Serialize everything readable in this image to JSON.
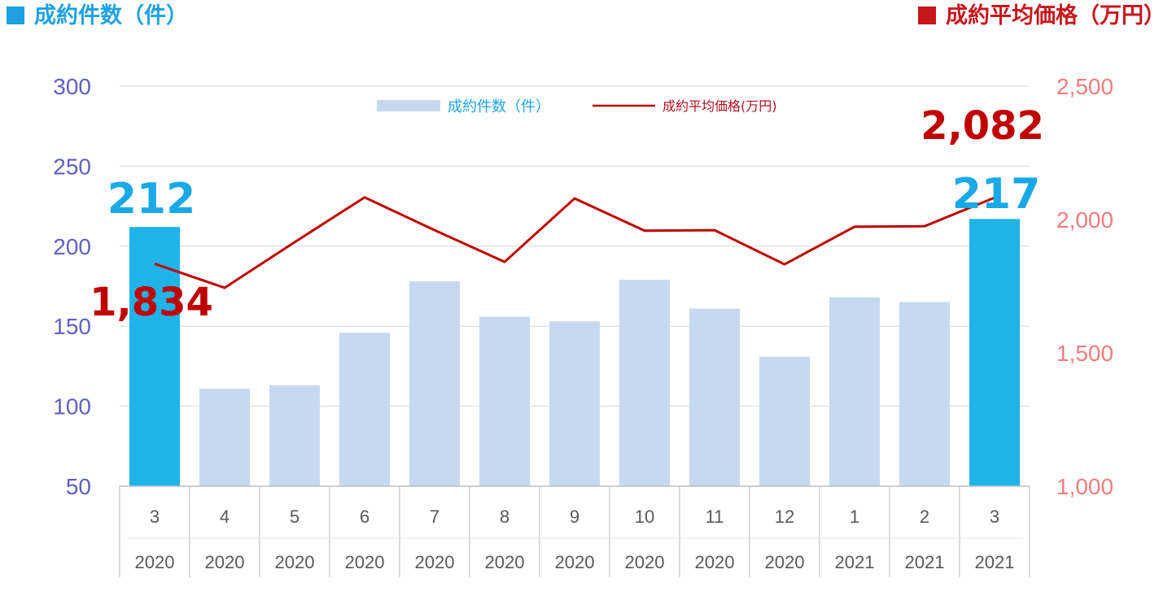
{
  "headers": {
    "left": "成約件数（件）",
    "right": "成約平均価格（万円）"
  },
  "chart_data": {
    "type": "bar",
    "categories": [
      "3",
      "4",
      "5",
      "6",
      "7",
      "8",
      "9",
      "10",
      "11",
      "12",
      "1",
      "2",
      "3"
    ],
    "years": [
      "2020",
      "2020",
      "2020",
      "2020",
      "2020",
      "2020",
      "2020",
      "2020",
      "2020",
      "2020",
      "2021",
      "2021",
      "2021"
    ],
    "series": [
      {
        "name": "成約件数（件）",
        "type": "bar",
        "axis": "left",
        "values": [
          212,
          111,
          113,
          146,
          178,
          156,
          153,
          179,
          161,
          131,
          168,
          165,
          217
        ]
      },
      {
        "name": "成約平均価格(万円)",
        "type": "line",
        "axis": "right",
        "values": [
          1834,
          1744,
          1915,
          2083,
          1960,
          1841,
          2079,
          1958,
          1960,
          1832,
          1973,
          1975,
          2082
        ]
      }
    ],
    "ylim_left": [
      50,
      300
    ],
    "yticks_left": [
      "50",
      "100",
      "150",
      "200",
      "250",
      "300"
    ],
    "ylim_right": [
      1000,
      2500
    ],
    "yticks_right": [
      "1,000",
      "1,500",
      "2,000",
      "2,500"
    ],
    "highlight_indices": [
      0,
      12
    ],
    "annotations": {
      "first_bar": "212",
      "last_bar": "217",
      "first_price": "1,834",
      "last_price": "2,082"
    },
    "legend_position": "top-center",
    "grid": true,
    "colors": {
      "bar": "#c6d9f0",
      "bar_highlight": "#1fb3ea",
      "line": "#c00000",
      "left_axis": "#6060c0",
      "right_axis": "#f07d7d"
    }
  }
}
